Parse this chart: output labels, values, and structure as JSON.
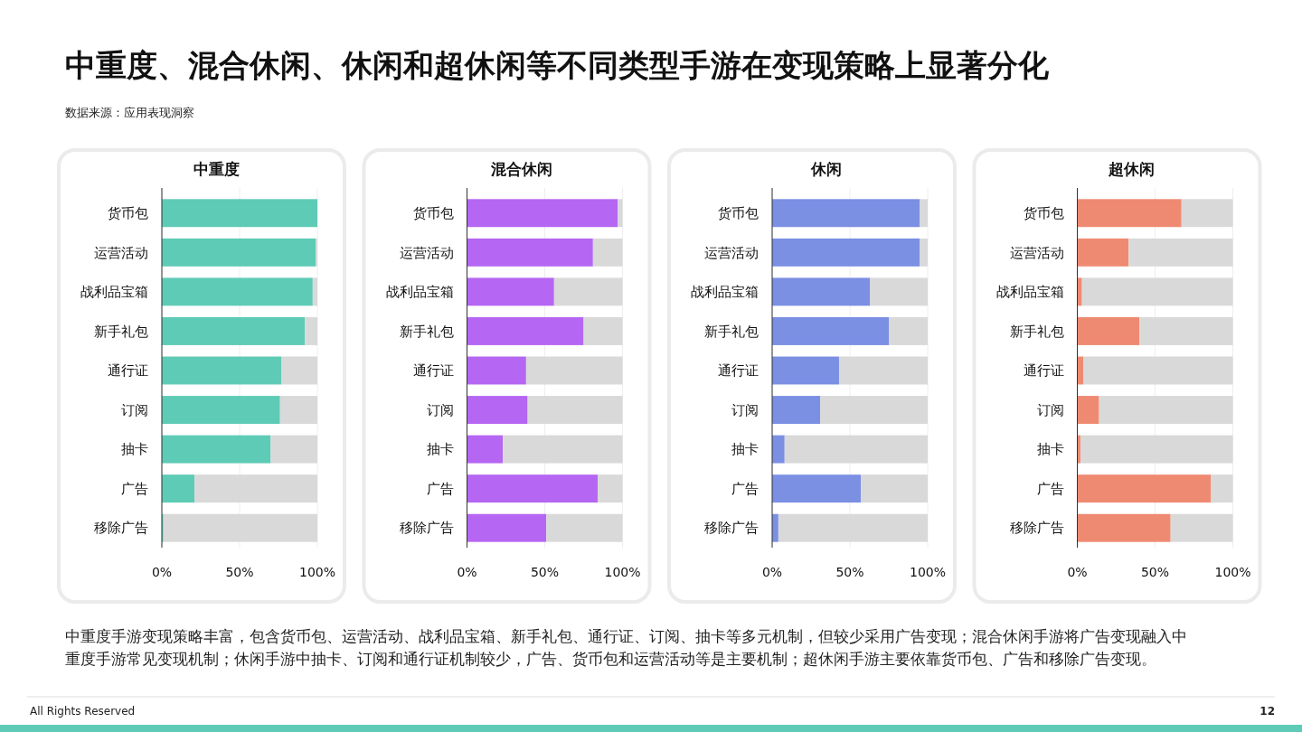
{
  "chart_data": [
    {
      "type": "other",
      "title": "中重度、混合休闲、休闲和超休闲等不同类型手游在变现策略上显著分化",
      "subtitle": "数据来源：应用表现洞察",
      "annotations": [
        "中重度手游变现策略丰富，包含货币包、运营活动、战利品宝箱、新手礼包、通行证、订阅、抽卡等多元机制，但较少采用广告变现；混合休闲手游将广告变现融入中重度手游常见变现机制；休闲手游中抽卡、订阅和通行证机制较少，广告、货币包和运营活动等是主要机制；超休闲手游主要依靠货币包、广告和移除广告变现。",
        "All Rights Reserved",
        "12"
      ]
    },
    {
      "type": "bar",
      "title": "中重度",
      "orientation": "horizontal",
      "stacked": true,
      "categories": [
        "货币包",
        "运营活动",
        "战利品宝箱",
        "新手礼包",
        "通行证",
        "订阅",
        "抽卡",
        "广告",
        "移除广告"
      ],
      "series": [
        {
          "color": "#5ecbb6",
          "values": [
            100,
            99,
            97,
            92,
            77,
            76,
            70,
            21,
            1
          ]
        },
        {
          "color": "#d9d9d9",
          "values": [
            0,
            1,
            3,
            8,
            23,
            24,
            30,
            79,
            99
          ]
        }
      ],
      "xlim": [
        0,
        100
      ],
      "xticks": [
        {
          "value": 0,
          "label": "0%"
        },
        {
          "value": 50,
          "label": "50%"
        },
        {
          "value": 100,
          "label": "100%"
        }
      ],
      "grid": "x"
    },
    {
      "type": "bar",
      "title": "混合休闲",
      "orientation": "horizontal",
      "stacked": true,
      "categories": [
        "货币包",
        "运营活动",
        "战利品宝箱",
        "新手礼包",
        "通行证",
        "订阅",
        "抽卡",
        "广告",
        "移除广告"
      ],
      "series": [
        {
          "color": "#b566f2",
          "values": [
            97,
            81,
            56,
            75,
            38,
            39,
            23,
            84,
            51
          ]
        },
        {
          "color": "#d9d9d9",
          "values": [
            3,
            19,
            44,
            25,
            62,
            61,
            77,
            16,
            49
          ]
        }
      ],
      "xlim": [
        0,
        100
      ],
      "xticks": [
        {
          "value": 0,
          "label": "0%"
        },
        {
          "value": 50,
          "label": "50%"
        },
        {
          "value": 100,
          "label": "100%"
        }
      ],
      "grid": "x"
    },
    {
      "type": "bar",
      "title": "休闲",
      "orientation": "horizontal",
      "stacked": true,
      "categories": [
        "货币包",
        "运营活动",
        "战利品宝箱",
        "新手礼包",
        "通行证",
        "订阅",
        "抽卡",
        "广告",
        "移除广告"
      ],
      "series": [
        {
          "color": "#7b8fe3",
          "values": [
            95,
            95,
            63,
            75,
            43,
            31,
            8,
            57,
            4
          ]
        },
        {
          "color": "#d9d9d9",
          "values": [
            5,
            5,
            37,
            25,
            57,
            69,
            92,
            43,
            96
          ]
        }
      ],
      "xlim": [
        0,
        100
      ],
      "xticks": [
        {
          "value": 0,
          "label": "0%"
        },
        {
          "value": 50,
          "label": "50%"
        },
        {
          "value": 100,
          "label": "100%"
        }
      ],
      "grid": "x"
    },
    {
      "type": "bar",
      "title": "超休闲",
      "orientation": "horizontal",
      "stacked": true,
      "categories": [
        "货币包",
        "运营活动",
        "战利品宝箱",
        "新手礼包",
        "通行证",
        "订阅",
        "抽卡",
        "广告",
        "移除广告"
      ],
      "series": [
        {
          "color": "#ef8a72",
          "values": [
            67,
            33,
            3,
            40,
            4,
            14,
            2,
            86,
            60
          ]
        },
        {
          "color": "#d9d9d9",
          "values": [
            33,
            67,
            97,
            60,
            96,
            86,
            98,
            14,
            40
          ]
        }
      ],
      "xlim": [
        0,
        100
      ],
      "xticks": [
        {
          "value": 0,
          "label": "0%"
        },
        {
          "value": 50,
          "label": "50%"
        },
        {
          "value": 100,
          "label": "100%"
        }
      ],
      "grid": "x"
    }
  ]
}
